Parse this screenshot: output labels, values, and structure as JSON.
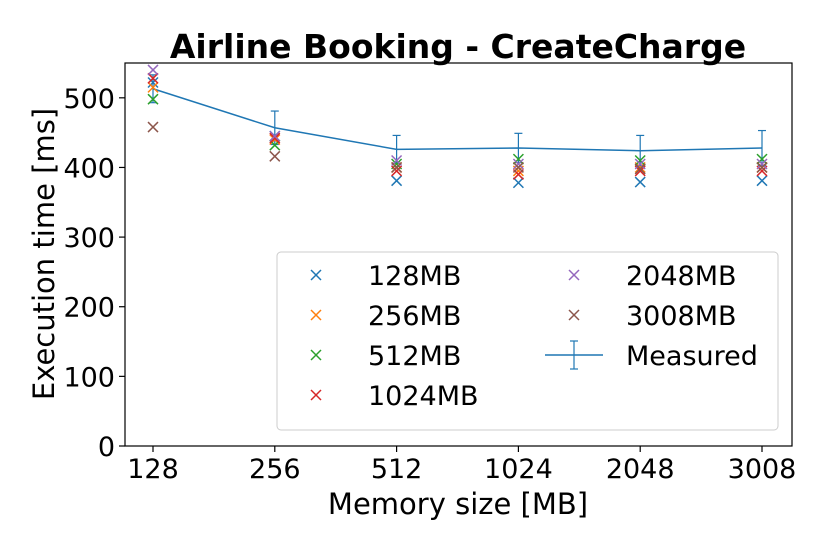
{
  "chart_data": {
    "type": "scatter",
    "title": "Airline Booking - CreateCharge",
    "xlabel": "Memory size [MB]",
    "ylabel": "Execution time [ms]",
    "categories": [
      "128",
      "256",
      "512",
      "1024",
      "2048",
      "3008"
    ],
    "ylim": [
      0,
      550
    ],
    "yticks": [
      0,
      100,
      200,
      300,
      400,
      500
    ],
    "grid": false,
    "legend_position": "lower-right",
    "legend_columns": 2,
    "series": [
      {
        "name": "128MB",
        "color": "#1f77b4",
        "marker": "x",
        "values": [
          522,
          445,
          381,
          378,
          379,
          381
        ]
      },
      {
        "name": "256MB",
        "color": "#ff7f0e",
        "marker": "x",
        "values": [
          515,
          440,
          400,
          395,
          400,
          400
        ]
      },
      {
        "name": "512MB",
        "color": "#2ca02c",
        "marker": "x",
        "values": [
          498,
          432,
          405,
          412,
          410,
          412
        ]
      },
      {
        "name": "1024MB",
        "color": "#d62728",
        "marker": "x",
        "values": [
          528,
          442,
          395,
          390,
          395,
          395
        ]
      },
      {
        "name": "2048MB",
        "color": "#9467bd",
        "marker": "x",
        "values": [
          540,
          445,
          410,
          405,
          405,
          405
        ]
      },
      {
        "name": "3008MB",
        "color": "#8c564b",
        "marker": "x",
        "values": [
          458,
          416,
          400,
          400,
          398,
          400
        ]
      }
    ],
    "measured": {
      "name": "Measured",
      "color": "#1f77b4",
      "values": [
        513,
        457,
        426,
        428,
        424,
        428
      ],
      "error": [
        20,
        24,
        20,
        21,
        22,
        25
      ]
    }
  }
}
